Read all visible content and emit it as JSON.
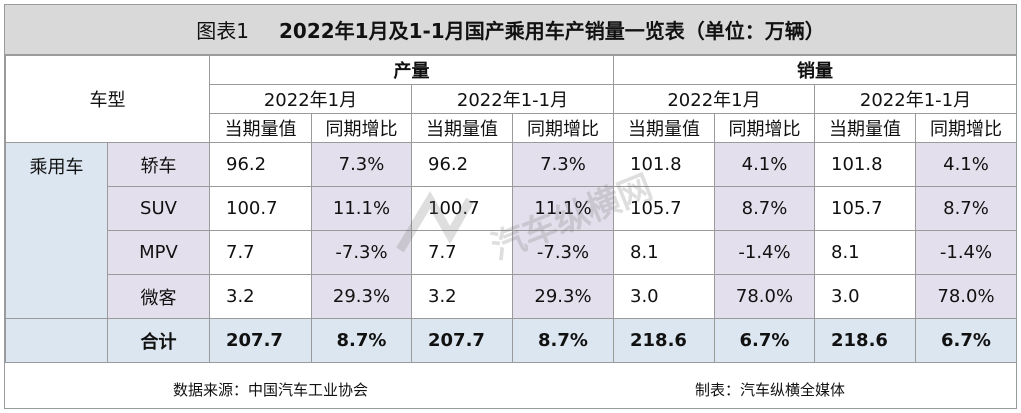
{
  "title": {
    "label": "图表1",
    "text": "2022年1月及1-1月国产乘用车产销量一览表（单位：万辆）"
  },
  "header": {
    "model_col": "车型",
    "groups": [
      "产量",
      "销量"
    ],
    "periods": [
      "2022年1月",
      "2022年1-1月",
      "2022年1月",
      "2022年1-1月"
    ],
    "metrics": [
      "当期量值",
      "同期增比",
      "当期量值",
      "同期增比",
      "当期量值",
      "同期增比",
      "当期量值",
      "同期增比"
    ]
  },
  "category": "乘用车",
  "rows": [
    {
      "model": "轿车",
      "cells": [
        "96.2",
        "7.3%",
        "96.2",
        "7.3%",
        "101.8",
        "4.1%",
        "101.8",
        "4.1%"
      ]
    },
    {
      "model": "SUV",
      "cells": [
        "100.7",
        "11.1%",
        "100.7",
        "11.1%",
        "105.7",
        "8.7%",
        "105.7",
        "8.7%"
      ]
    },
    {
      "model": "MPV",
      "cells": [
        "7.7",
        "-7.3%",
        "7.7",
        "-7.3%",
        "8.1",
        "-1.4%",
        "8.1",
        "-1.4%"
      ]
    },
    {
      "model": "微客",
      "cells": [
        "3.2",
        "29.3%",
        "3.2",
        "29.3%",
        "3.0",
        "78.0%",
        "3.0",
        "78.0%"
      ]
    }
  ],
  "total": {
    "label": "合计",
    "cells": [
      "207.7",
      "8.7%",
      "207.7",
      "8.7%",
      "218.6",
      "6.7%",
      "218.6",
      "6.7%"
    ]
  },
  "footer": {
    "source": "数据来源：中国汽车工业协会",
    "maker": "制表：汽车纵横全媒体"
  },
  "watermark": {
    "text": "汽车纵横网",
    "icon": "car-logo-icon"
  }
}
